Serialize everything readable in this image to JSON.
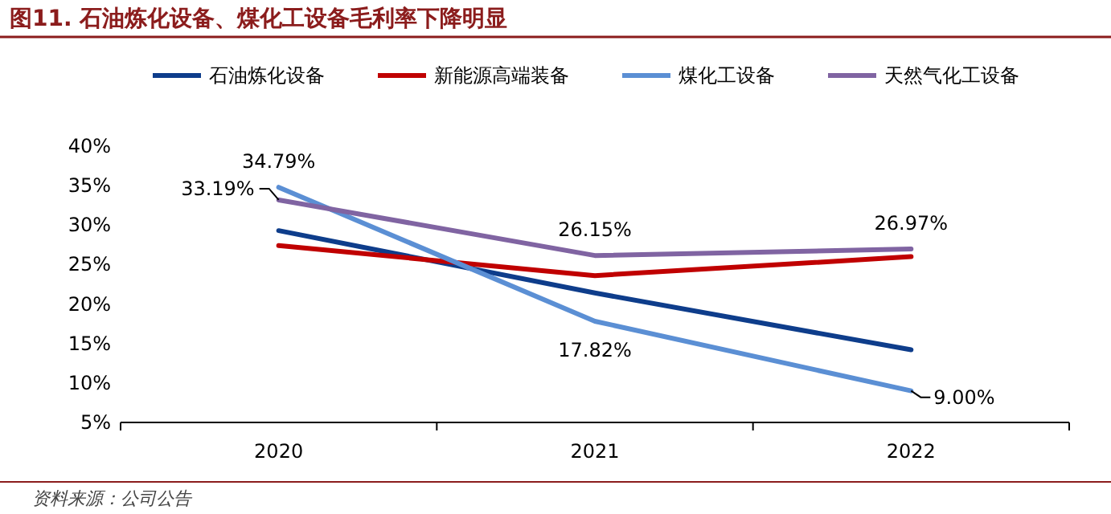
{
  "chart_data": {
    "type": "line",
    "title": "图11. 石油炼化设备、煤化工设备毛利率下降明显",
    "categories": [
      "2020",
      "2021",
      "2022"
    ],
    "ylim": [
      5,
      40
    ],
    "yticks": [
      {
        "value": 5,
        "label": "5%"
      },
      {
        "value": 10,
        "label": "10%"
      },
      {
        "value": 15,
        "label": "15%"
      },
      {
        "value": 20,
        "label": "20%"
      },
      {
        "value": 25,
        "label": "25%"
      },
      {
        "value": 30,
        "label": "30%"
      },
      {
        "value": 35,
        "label": "35%"
      },
      {
        "value": 40,
        "label": "40%"
      }
    ],
    "legend": "top",
    "grid": false,
    "series": [
      {
        "name": "石油炼化设备",
        "color": "#0e3d8b",
        "values": [
          29.3,
          21.4,
          14.2
        ]
      },
      {
        "name": "新能源高端装备",
        "color": "#c00000",
        "values": [
          27.4,
          23.6,
          26.0
        ]
      },
      {
        "name": "煤化工设备",
        "color": "#5b8fd4",
        "values": [
          34.79,
          17.82,
          9.0
        ],
        "value_labels": [
          "34.79%",
          "17.82%",
          "9.00%"
        ]
      },
      {
        "name": "天然气化工设备",
        "color": "#8064a2",
        "values": [
          33.19,
          26.15,
          26.97
        ],
        "value_labels": [
          "33.19%",
          "26.15%",
          "26.97%"
        ]
      }
    ],
    "annotations": [
      "资料来源：公司公告"
    ]
  }
}
